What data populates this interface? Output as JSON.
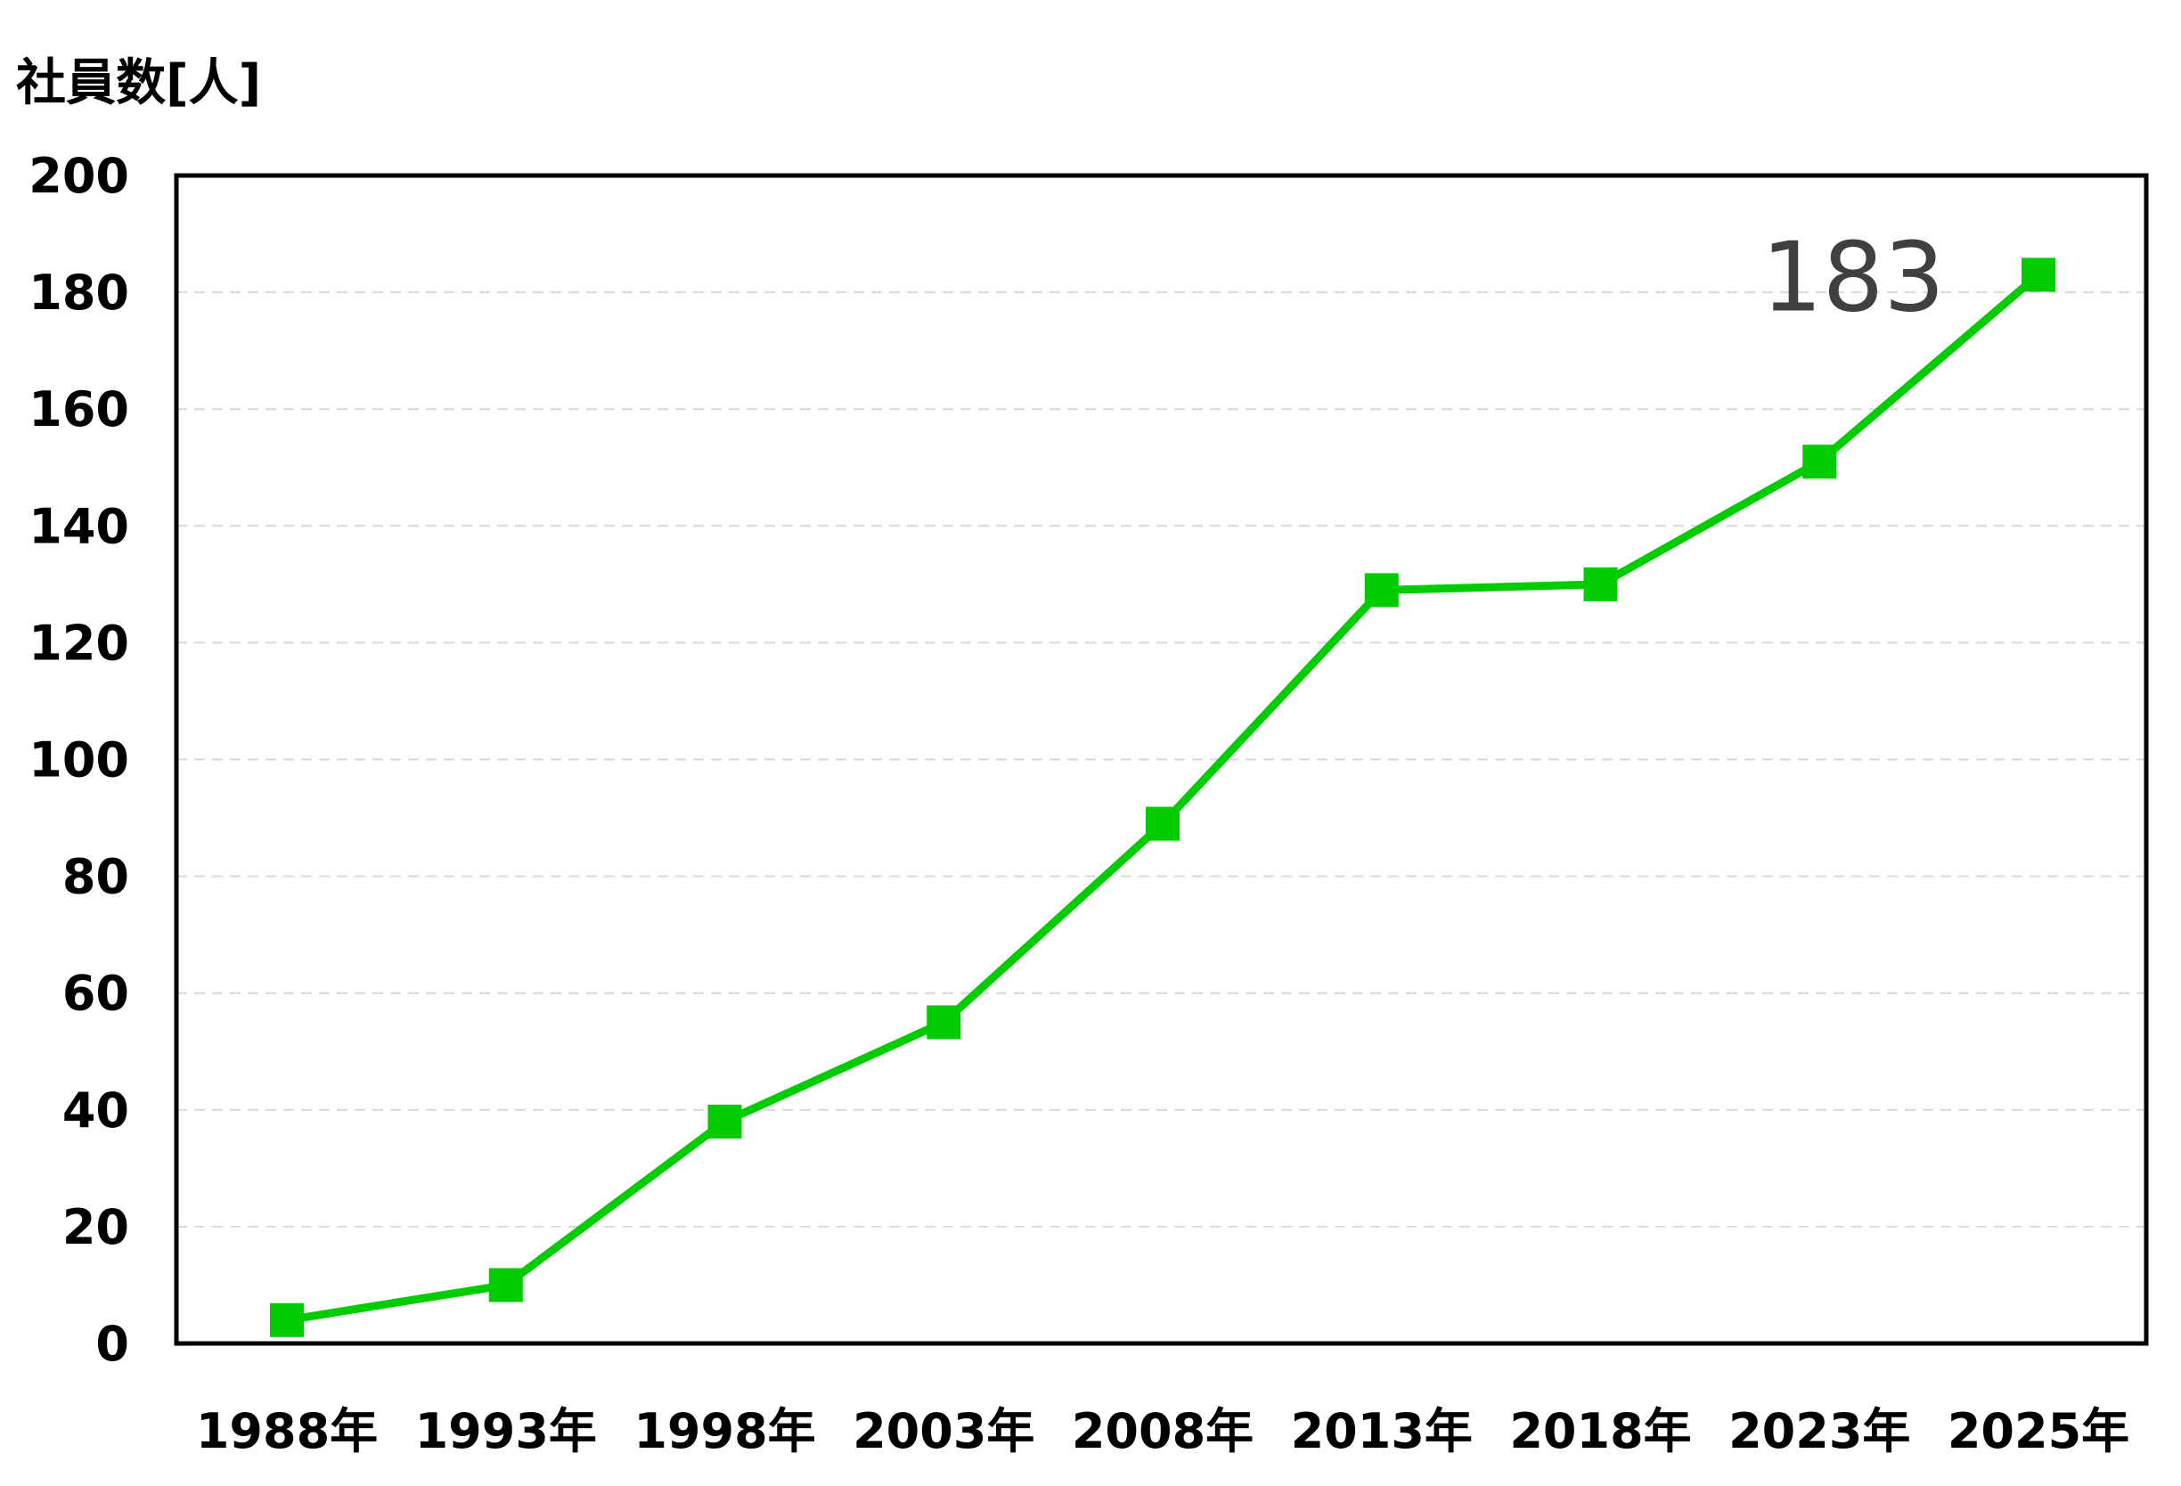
{
  "chart_data": {
    "type": "line",
    "ylabel": "社員数[人]",
    "categories": [
      "1988年",
      "1993年",
      "1998年",
      "2003年",
      "2008年",
      "2013年",
      "2018年",
      "2023年",
      "2025年"
    ],
    "series": [
      {
        "values": [
          4,
          10,
          38,
          55,
          89,
          129,
          130,
          151,
          183
        ]
      }
    ],
    "ylim": [
      0,
      200
    ],
    "yticks": [
      0,
      20,
      40,
      60,
      80,
      100,
      120,
      140,
      160,
      180,
      200
    ],
    "grid": true,
    "annotations": [
      {
        "category": "2025年",
        "text": "183"
      }
    ],
    "colors": {
      "line": "#00cc00",
      "marker": "#00cc00",
      "grid": "#d9d9d9",
      "frame": "#000000",
      "annotation": "#404040"
    }
  }
}
